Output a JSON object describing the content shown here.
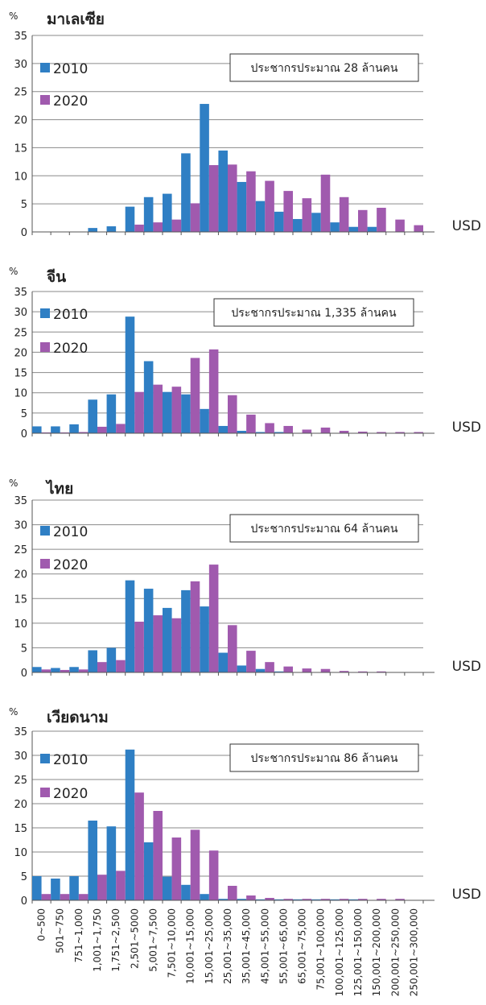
{
  "chart_data": {
    "type": "bar",
    "categories": [
      "0~500",
      "501~750",
      "751~1,000",
      "1,001~1,750",
      "1,751~2,500",
      "2,501~5000",
      "5,001~7,500",
      "7,501~10,000",
      "10,001~15,000",
      "15,001~25,000",
      "25,001~35,000",
      "35,001~45,000",
      "45,001~55,000",
      "55,001~65,000",
      "65,001~75,000",
      "75,001~100,000",
      "100,001~125,000",
      "125,001~150,000",
      "150,001~200,000",
      "200,001~250,000",
      "250,001~300,000"
    ],
    "y_axis_label": "%",
    "x_axis_unit": "USD",
    "ylim": [
      0,
      35
    ],
    "yticks": [
      0,
      5,
      10,
      15,
      20,
      25,
      30,
      35
    ],
    "grid": true,
    "colors": {
      "2010": "#2f7fc4",
      "2020": "#a05aae"
    },
    "panels": [
      {
        "title": "มาเลเซีย",
        "population_note": "ประชากรประมาณ 28 ล้านคน",
        "series": [
          {
            "name": "2010",
            "values": [
              0,
              0,
              0,
              0.7,
              1.0,
              4.5,
              6.2,
              6.8,
              14.0,
              22.8,
              14.5,
              8.9,
              5.5,
              3.6,
              2.3,
              3.4,
              1.7,
              0.9,
              0.9,
              0,
              0
            ]
          },
          {
            "name": "2020",
            "values": [
              0,
              0,
              0,
              0,
              0,
              1.3,
              1.7,
              2.2,
              5.1,
              11.9,
              12.0,
              10.8,
              9.1,
              7.3,
              6.0,
              10.2,
              6.2,
              3.9,
              4.3,
              2.2,
              1.2
            ]
          }
        ]
      },
      {
        "title": "จีน",
        "population_note": "ประชากรประมาณ 1,335 ล้านคน",
        "series": [
          {
            "name": "2010",
            "values": [
              1.7,
              1.7,
              2.2,
              8.3,
              9.6,
              28.8,
              17.8,
              10.2,
              9.6,
              6.0,
              1.8,
              0.6,
              0.3,
              0.3,
              0,
              0,
              0,
              0,
              0,
              0,
              0
            ]
          },
          {
            "name": "2020",
            "values": [
              0.2,
              0.2,
              0.3,
              1.6,
              2.3,
              10.2,
              12.0,
              11.5,
              18.6,
              20.7,
              9.4,
              4.6,
              2.5,
              1.8,
              0.9,
              1.4,
              0.6,
              0.4,
              0.3,
              0.3,
              0.3
            ]
          }
        ]
      },
      {
        "title": "ไทย",
        "population_note": "ประชากรประมาณ 64 ล้านคน",
        "series": [
          {
            "name": "2010",
            "values": [
              1.1,
              0.9,
              1.1,
              4.5,
              5.0,
              18.7,
              17.0,
              13.1,
              16.7,
              13.4,
              4.0,
              1.4,
              0.7,
              0.2,
              0,
              0,
              0,
              0,
              0,
              0,
              0
            ]
          },
          {
            "name": "2020",
            "values": [
              0.6,
              0.5,
              0.6,
              2.1,
              2.5,
              10.3,
              11.6,
              11.0,
              18.5,
              21.9,
              9.6,
              4.4,
              2.1,
              1.2,
              0.8,
              0.7,
              0.3,
              0.2,
              0.2,
              0,
              0
            ]
          }
        ]
      },
      {
        "title": "เวียดนาม",
        "population_note": "ประชากรประมาณ 86 ล้านคน",
        "series": [
          {
            "name": "2010",
            "values": [
              5.0,
              4.5,
              5.0,
              16.5,
              15.3,
              31.2,
              12.0,
              4.9,
              3.2,
              1.3,
              0.3,
              0.3,
              0.2,
              0.2,
              0.2,
              0.2,
              0.2,
              0.2,
              0,
              0,
              0
            ]
          },
          {
            "name": "2020",
            "values": [
              1.3,
              1.3,
              1.3,
              5.3,
              6.1,
              22.3,
              18.5,
              13.0,
              14.6,
              10.3,
              3.0,
              1.0,
              0.5,
              0.3,
              0.3,
              0.3,
              0.3,
              0.3,
              0.3,
              0.3,
              0
            ]
          }
        ]
      }
    ]
  }
}
